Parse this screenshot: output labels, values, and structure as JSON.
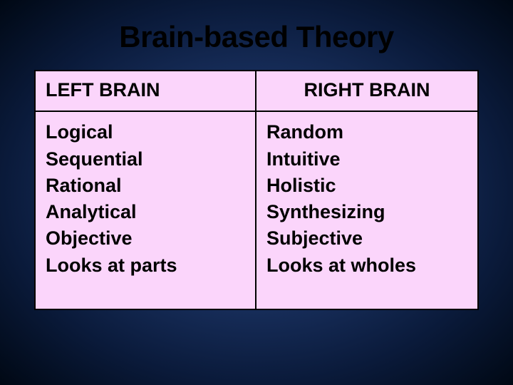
{
  "slide": {
    "title": "Brain-based Theory",
    "background_gradient_center": "#2a4a8a",
    "background_gradient_edge": "#000814",
    "title_color": "#000000",
    "title_fontsize": 42,
    "table": {
      "border_color": "#000000",
      "cell_bg": "#fbd5fb",
      "header_fontsize": 27,
      "body_fontsize": 27,
      "columns": [
        {
          "header": "LEFT BRAIN",
          "align": "left"
        },
        {
          "header": "RIGHT BRAIN",
          "align": "center"
        }
      ],
      "rows": [
        {
          "left": [
            "Logical",
            "Sequential",
            "Rational",
            "Analytical",
            "Objective",
            "Looks at parts"
          ],
          "right": [
            "Random",
            "Intuitive",
            "Holistic",
            "Synthesizing",
            "Subjective",
            "Looks at wholes"
          ]
        }
      ]
    }
  }
}
